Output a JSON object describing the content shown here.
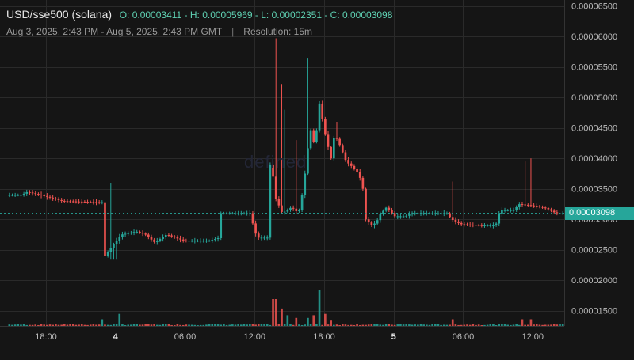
{
  "header": {
    "symbol": "USD/sse500 (solana)",
    "ohlc_text": "O: 0.00003411 - H: 0.00005969 - L: 0.00002351 - C: 0.00003098",
    "range": "Aug 3, 2025, 2:43 PM - Aug 5, 2025, 2:43 PM GMT",
    "separator": "|",
    "resolution": "Resolution: 15m"
  },
  "watermark": "defined",
  "colors": {
    "up": "#26a69a",
    "down": "#ef5350",
    "background": "#151515",
    "grid": "#2a2a2a"
  },
  "chart_data": {
    "type": "candlestick",
    "y_ticks": [
      "0.00006500",
      "0.00006000",
      "0.00005500",
      "0.00005000",
      "0.00004500",
      "0.00004000",
      "0.00003500",
      "0.00003000",
      "0.00002500",
      "0.00002000",
      "0.00001500"
    ],
    "y_tick_values": [
      6.5e-05,
      6e-05,
      5.5e-05,
      5e-05,
      4.5e-05,
      4e-05,
      3.5e-05,
      3e-05,
      2.5e-05,
      2e-05,
      1.5e-05
    ],
    "ylim": [
      1.25e-05,
      6.6e-05
    ],
    "x_ticks": [
      "18:00",
      "4",
      "06:00",
      "12:00",
      "18:00",
      "5",
      "06:00",
      "12:00"
    ],
    "x_tick_hours": [
      3.28,
      9.28,
      15.28,
      21.28,
      27.28,
      33.28,
      39.28,
      45.28
    ],
    "x_tick_bold": [
      false,
      true,
      false,
      false,
      false,
      true,
      false,
      false
    ],
    "x_range_hours": [
      0,
      48
    ],
    "last_price": "0.00003098",
    "last_value": 3.098e-05,
    "open": 3.411e-05,
    "high": 5.969e-05,
    "low": 2.351e-05,
    "close": 3.098e-05,
    "key_points": [
      [
        0,
        3.4e-05
      ],
      [
        1.3,
        3.4e-05
      ],
      [
        1.8,
        3.45e-05
      ],
      [
        3.3,
        3.38e-05
      ],
      [
        4.8,
        3.3e-05
      ],
      [
        8.0,
        3.28e-05
      ],
      [
        8.4,
        3.28e-05
      ],
      [
        8.5,
        2.4e-05
      ],
      [
        9.1,
        2.55e-05
      ],
      [
        9.9,
        2.75e-05
      ],
      [
        11.2,
        2.8e-05
      ],
      [
        12.0,
        2.75e-05
      ],
      [
        12.8,
        2.62e-05
      ],
      [
        13.8,
        2.75e-05
      ],
      [
        15.3,
        2.65e-05
      ],
      [
        17.5,
        2.65e-05
      ],
      [
        18.4,
        2.7e-05
      ],
      [
        18.5,
        3.1e-05
      ],
      [
        20.3,
        3.1e-05
      ],
      [
        21.0,
        3.1e-05
      ],
      [
        21.6,
        2.7e-05
      ],
      [
        22.6,
        2.7e-05
      ],
      [
        22.8,
        4.3e-05
      ],
      [
        23.1,
        3.4e-05
      ],
      [
        23.8,
        3.1e-05
      ],
      [
        24.6,
        3.2e-05
      ],
      [
        25.2,
        3.1e-05
      ],
      [
        25.6,
        3.5e-05
      ],
      [
        26.2,
        4.5e-05
      ],
      [
        26.6,
        4.2e-05
      ],
      [
        27.0,
        4.9e-05
      ],
      [
        27.6,
        4.3e-05
      ],
      [
        28.0,
        4e-05
      ],
      [
        28.3,
        4.4e-05
      ],
      [
        28.8,
        4.2e-05
      ],
      [
        29.3,
        3.95e-05
      ],
      [
        30.2,
        3.8e-05
      ],
      [
        30.7,
        3.6e-05
      ],
      [
        31.0,
        3e-05
      ],
      [
        31.5,
        2.9e-05
      ],
      [
        31.9,
        2.95e-05
      ],
      [
        32.3,
        3.1e-05
      ],
      [
        32.8,
        3.2e-05
      ],
      [
        33.5,
        3.05e-05
      ],
      [
        34.4,
        3.05e-05
      ],
      [
        35.0,
        3.1e-05
      ],
      [
        36.5,
        3.1e-05
      ],
      [
        38.0,
        3.1e-05
      ],
      [
        38.4,
        3e-05
      ],
      [
        39.2,
        2.92e-05
      ],
      [
        41.0,
        2.9e-05
      ],
      [
        42.2,
        2.9e-05
      ],
      [
        42.6,
        3.15e-05
      ],
      [
        43.8,
        3.15e-05
      ],
      [
        44.2,
        3.25e-05
      ],
      [
        45.6,
        3.22e-05
      ],
      [
        46.6,
        3.18e-05
      ],
      [
        47.4,
        3.1e-05
      ]
    ],
    "spikes": [
      [
        8.9,
        3.6e-05
      ],
      [
        23.0,
        5.97e-05
      ],
      [
        23.6,
        5.22e-05
      ],
      [
        23.9,
        4.8e-05
      ],
      [
        24.9,
        4.3e-05
      ],
      [
        25.9,
        5.65e-05
      ],
      [
        26.8,
        4.9e-05
      ],
      [
        28.4,
        4.6e-05
      ],
      [
        38.3,
        3.62e-05
      ],
      [
        44.6,
        3.95e-05
      ],
      [
        45.2,
        4e-05
      ]
    ],
    "volume_spikes": [
      [
        8.2,
        0.25
      ],
      [
        9.6,
        0.45
      ],
      [
        22.9,
        1.0
      ],
      [
        23.2,
        1.0
      ],
      [
        23.5,
        0.65
      ],
      [
        24.0,
        0.4
      ],
      [
        24.8,
        0.3
      ],
      [
        25.8,
        0.3
      ],
      [
        26.3,
        0.4
      ],
      [
        26.9,
        1.35
      ],
      [
        27.3,
        0.45
      ],
      [
        27.8,
        0.2
      ],
      [
        38.4,
        0.25
      ],
      [
        44.4,
        0.25
      ],
      [
        45.0,
        0.25
      ]
    ]
  }
}
